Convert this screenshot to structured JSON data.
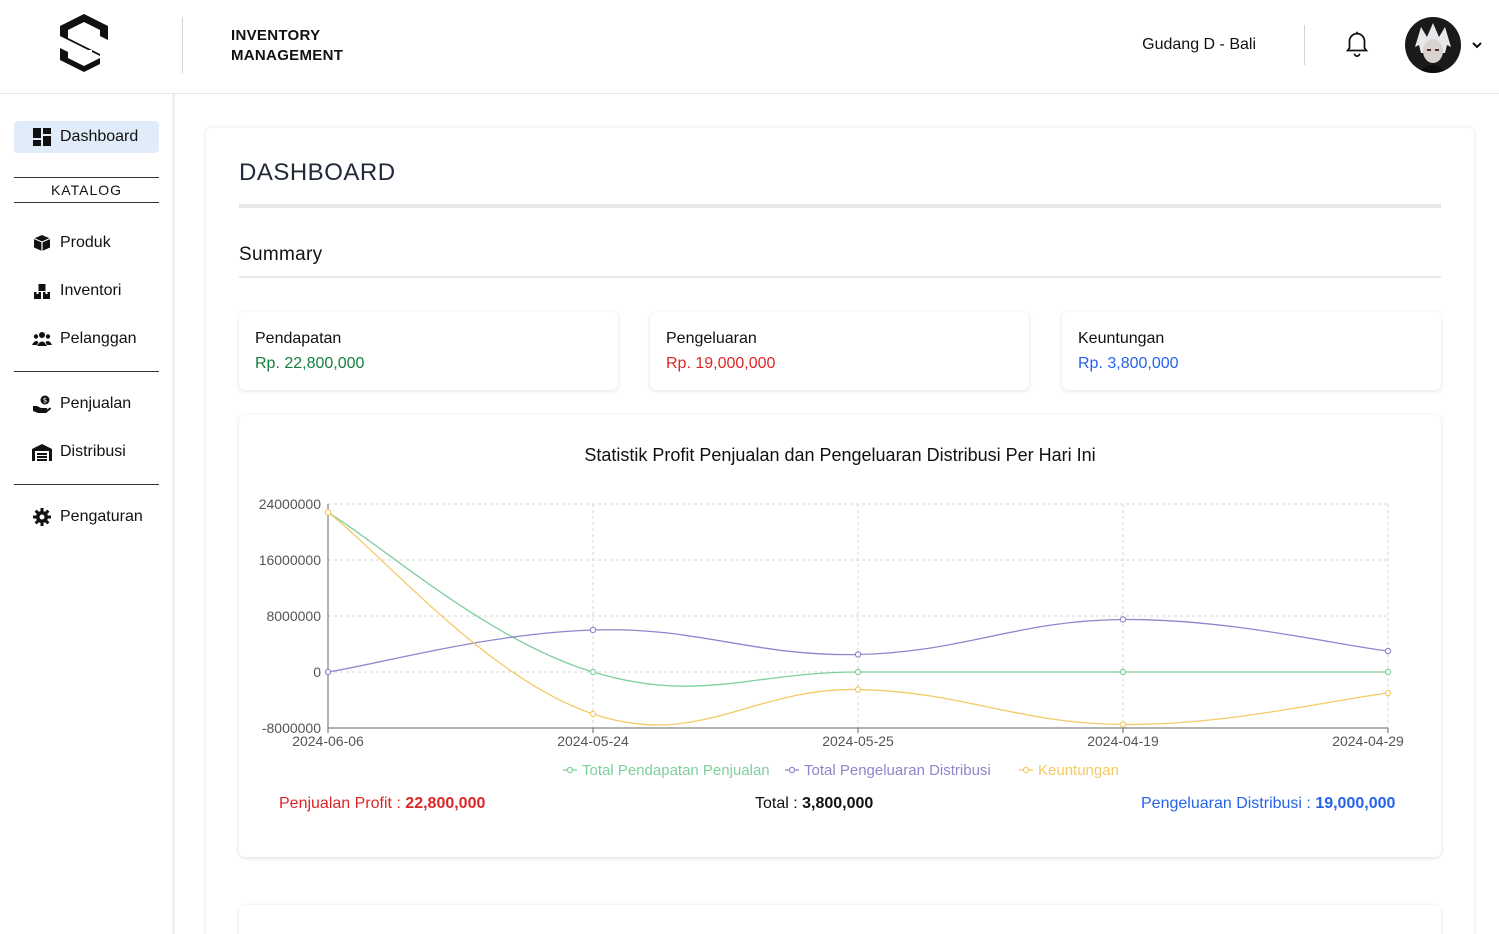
{
  "header": {
    "title_line1": "INVENTORY",
    "title_line2": "MANAGEMENT",
    "warehouse": "Gudang D - Bali"
  },
  "sidebar": {
    "dashboard": "Dashboard",
    "katalog": "KATALOG",
    "produk": "Produk",
    "inventori": "Inventori",
    "pelanggan": "Pelanggan",
    "penjualan": "Penjualan",
    "distribusi": "Distribusi",
    "pengaturan": "Pengaturan"
  },
  "main": {
    "page_title": "DASHBOARD",
    "summary_title": "Summary",
    "cards": [
      {
        "label": "Pendapatan",
        "value": "Rp. 22,800,000",
        "color": "#15803d"
      },
      {
        "label": "Pengeluaran",
        "value": "Rp. 19,000,000",
        "color": "#dc2626"
      },
      {
        "label": "Keuntungan",
        "value": "Rp. 3,800,000",
        "color": "#2563eb"
      }
    ],
    "totals": {
      "profit_label": "Penjualan Profit : ",
      "profit_value": "22,800,000",
      "total_label": "Total : ",
      "total_value": "3,800,000",
      "distribusi_label": "Pengeluaran Distribusi : ",
      "distribusi_value": "19,000,000"
    }
  },
  "chart_data": {
    "type": "line",
    "title": "Statistik Profit Penjualan dan Pengeluaran Distribusi Per Hari Ini",
    "categories": [
      "2024-06-06",
      "2024-05-24",
      "2024-05-25",
      "2024-04-19",
      "2024-04-29"
    ],
    "y_ticks": [
      "24000000",
      "16000000",
      "8000000",
      "0",
      "-8000000"
    ],
    "ylim": [
      -8000000,
      24000000
    ],
    "grid": true,
    "legend_position": "bottom",
    "series": [
      {
        "name": "Total Pendapatan Penjualan",
        "color": "#7fcf9d",
        "values": [
          22800000,
          0,
          0,
          0,
          0
        ]
      },
      {
        "name": "Total Pengeluaran Distribusi",
        "color": "#8e86cc",
        "values": [
          0,
          6000000,
          2500000,
          7500000,
          3000000
        ]
      },
      {
        "name": "Keuntungan",
        "color": "#f4ca66",
        "values": [
          22800000,
          -6000000,
          -2500000,
          -7500000,
          -3000000
        ]
      }
    ]
  }
}
